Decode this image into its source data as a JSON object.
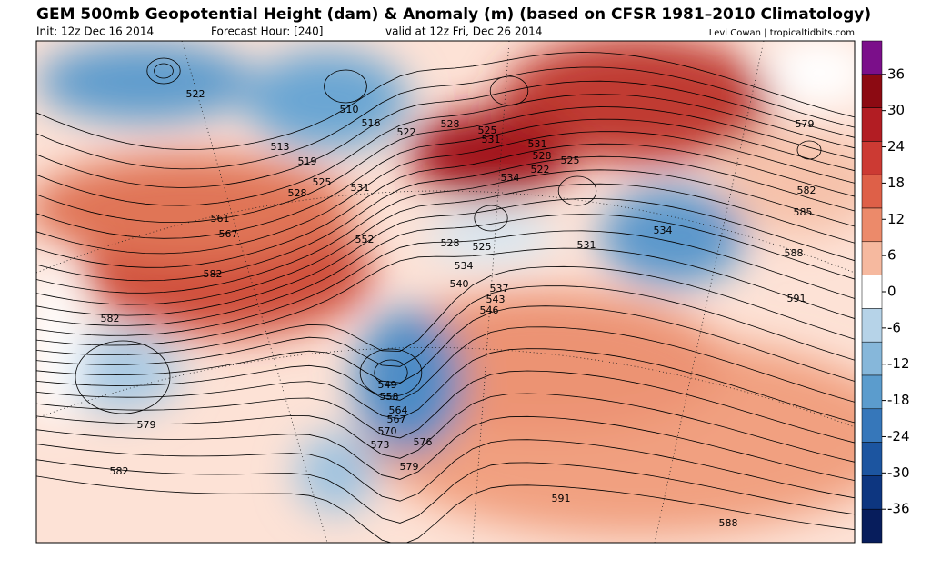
{
  "header": {
    "title": "GEM 500mb Geopotential Height (dam) & Anomaly (m) (based on CFSR 1981–2010 Climatology)",
    "init": "Init: 12z Dec 16 2014",
    "forecast_hour": "Forecast Hour: [240]",
    "valid": "valid at 12z Fri, Dec 26 2014",
    "credit": "Levi Cowan | tropicaltidbits.com"
  },
  "colorbar": {
    "ticks": [
      36,
      30,
      24,
      18,
      12,
      6,
      0,
      -6,
      -12,
      -18,
      -24,
      -30,
      -36
    ],
    "colors": [
      "#7b0f8a",
      "#8c0a12",
      "#b21d23",
      "#cc3a33",
      "#de6048",
      "#ec8a6a",
      "#f6b99f",
      "#ffffff",
      "#b6d3e8",
      "#86b7da",
      "#5b9ccd",
      "#3677ba",
      "#1c55a0",
      "#0d3680",
      "#071d5c"
    ]
  },
  "contour_labels": [
    522,
    510,
    516,
    513,
    519,
    528,
    525,
    531,
    522,
    528,
    525,
    531,
    531,
    528,
    522,
    525,
    534,
    561,
    567,
    552,
    528,
    525,
    534,
    540,
    537,
    543,
    546,
    531,
    534,
    582,
    582,
    582,
    585,
    588,
    591,
    579,
    579,
    582,
    549,
    558,
    564,
    567,
    570,
    573,
    576,
    579,
    591,
    588
  ]
}
